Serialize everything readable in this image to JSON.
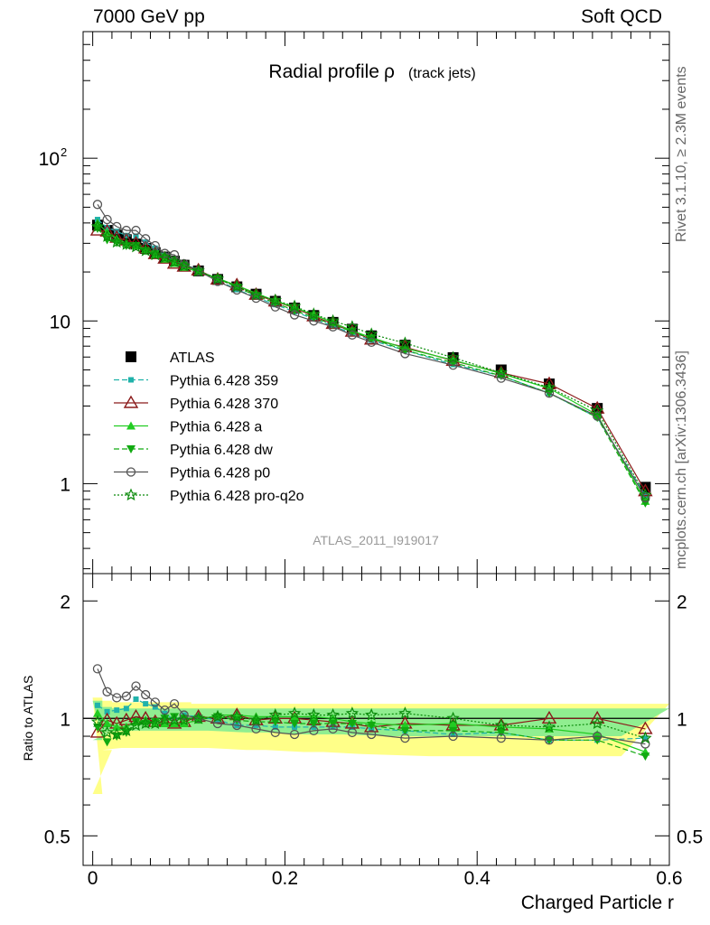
{
  "header": {
    "left": "7000 GeV pp",
    "right": "Soft QCD"
  },
  "side_labels": {
    "rivet": "Rivet 3.1.10, ≥ 2.3M events",
    "mcplots": "mcplots.cern.ch [arXiv:1306.3436]"
  },
  "colors": {
    "atlas": "#000000",
    "p359": "#20b2aa",
    "p370": "#8b1a1a",
    "pa": "#22cc22",
    "pdw": "#11aa11",
    "pp0": "#555555",
    "pq2o": "#0a8a0a",
    "band_inner": "#90ee90",
    "band_outer": "#ffff88"
  },
  "chart_data": [
    {
      "type": "line",
      "title": "Radial profile",
      "title_symbol": "ρ",
      "title_suffix": "(track jets)",
      "watermark": "ATLAS_2011_I919017",
      "xlabel": "Charged Particle r",
      "ylabel": "",
      "y_scale": "log",
      "xlim": [
        -0.01,
        0.6
      ],
      "ylim": [
        0.28,
        600
      ],
      "yticks": [
        {
          "value": 1,
          "label": "1"
        },
        {
          "value": 10,
          "label": "10"
        },
        {
          "value": 100,
          "label": "10",
          "sup": "2"
        }
      ],
      "legend_position": "left-lower",
      "x": [
        0.005,
        0.015,
        0.025,
        0.035,
        0.045,
        0.055,
        0.065,
        0.075,
        0.085,
        0.095,
        0.11,
        0.13,
        0.15,
        0.17,
        0.19,
        0.21,
        0.23,
        0.25,
        0.27,
        0.29,
        0.325,
        0.375,
        0.425,
        0.475,
        0.525,
        0.575
      ],
      "series": [
        {
          "name": "ATLAS",
          "key": "atlas",
          "marker": "square-filled",
          "dash": "none",
          "values": [
            38.8,
            36.0,
            33.7,
            31.6,
            29.7,
            27.9,
            26.3,
            24.7,
            23.3,
            22.0,
            20.3,
            18.0,
            16.2,
            14.6,
            13.2,
            12.0,
            10.8,
            9.8,
            8.9,
            8.1,
            7.1,
            5.95,
            5.0,
            4.1,
            2.9,
            0.95
          ]
        },
        {
          "name": "Pythia 6.428 359",
          "key": "p359",
          "marker": "square-small",
          "dash": "6,3",
          "values": [
            42,
            37.5,
            35.5,
            33.5,
            33.2,
            30.5,
            28.0,
            25.3,
            23.2,
            22.4,
            20.5,
            17.8,
            15.6,
            14.0,
            12.6,
            11.4,
            10.3,
            9.3,
            8.4,
            7.6,
            6.6,
            5.4,
            4.6,
            3.6,
            2.55,
            0.85
          ]
        },
        {
          "name": "Pythia 6.428 370",
          "key": "p370",
          "marker": "triangle-open",
          "dash": "none",
          "values": [
            36,
            35.5,
            32.5,
            31.3,
            30.0,
            28.0,
            25.8,
            24.2,
            22.5,
            21.6,
            20.5,
            18.0,
            16.6,
            14.5,
            13.2,
            12.0,
            10.7,
            9.6,
            8.6,
            7.7,
            6.9,
            5.7,
            4.8,
            4.1,
            2.9,
            0.9
          ]
        },
        {
          "name": "Pythia 6.428 a",
          "key": "pa",
          "marker": "triangle-filled",
          "dash": "none",
          "values": [
            40,
            35.0,
            32.0,
            30.0,
            29.0,
            27.5,
            25.6,
            24.0,
            22.6,
            21.4,
            20.0,
            18.3,
            16.5,
            14.8,
            13.3,
            12.1,
            10.9,
            9.8,
            8.7,
            7.9,
            6.8,
            5.75,
            4.75,
            3.85,
            2.65,
            0.78
          ]
        },
        {
          "name": "Pythia 6.428 dw",
          "key": "pdw",
          "marker": "triangle-down-filled",
          "dash": "6,3",
          "values": [
            37,
            31.5,
            30.3,
            29.0,
            29.0,
            27.0,
            25.8,
            24.7,
            23.6,
            22.0,
            20.3,
            18.2,
            16.1,
            14.3,
            12.9,
            11.6,
            10.5,
            9.5,
            8.6,
            7.8,
            6.6,
            5.55,
            4.6,
            3.6,
            2.55,
            0.76
          ]
        },
        {
          "name": "Pythia 6.428 p0",
          "key": "pp0",
          "marker": "circle-open",
          "dash": "none",
          "values": [
            52,
            42.0,
            38.0,
            36.0,
            36.0,
            32.0,
            29.0,
            26.0,
            25.5,
            22.5,
            20.3,
            17.5,
            15.5,
            13.8,
            12.2,
            10.9,
            10.0,
            9.2,
            8.2,
            7.4,
            6.3,
            5.35,
            4.45,
            3.6,
            2.6,
            0.82
          ]
        },
        {
          "name": "Pythia 6.428 pro-q2o",
          "key": "pq2o",
          "marker": "star-open",
          "dash": "2,2",
          "values": [
            38,
            33.0,
            30.5,
            29.5,
            28.5,
            27.0,
            25.5,
            24.5,
            23.0,
            21.8,
            20.3,
            18.1,
            16.3,
            14.5,
            13.4,
            12.3,
            11.0,
            10.0,
            9.2,
            8.3,
            7.3,
            5.95,
            4.8,
            3.9,
            2.8,
            0.85
          ]
        }
      ]
    },
    {
      "type": "line",
      "title": "",
      "xlabel": "Charged Particle r",
      "ylabel": "Ratio to ATLAS",
      "y_scale": "log",
      "xlim": [
        -0.01,
        0.6
      ],
      "ylim": [
        0.42,
        2.35
      ],
      "yticks": [
        {
          "value": 0.5,
          "label": "0.5"
        },
        {
          "value": 1,
          "label": "1"
        },
        {
          "value": 2,
          "label": "2"
        }
      ],
      "xticks": [
        {
          "value": 0,
          "label": "0"
        },
        {
          "value": 0.2,
          "label": "0.2"
        },
        {
          "value": 0.4,
          "label": "0.4"
        },
        {
          "value": 0.6,
          "label": "0.6"
        }
      ],
      "x": [
        0.005,
        0.015,
        0.025,
        0.035,
        0.045,
        0.055,
        0.065,
        0.075,
        0.085,
        0.095,
        0.11,
        0.13,
        0.15,
        0.17,
        0.19,
        0.21,
        0.23,
        0.25,
        0.27,
        0.29,
        0.325,
        0.375,
        0.425,
        0.475,
        0.525,
        0.575
      ],
      "band_inner": [
        [
          0.88,
          1.11
        ],
        [
          0.92,
          1.07
        ],
        [
          0.93,
          1.06
        ],
        [
          0.93,
          1.06
        ],
        [
          0.93,
          1.06
        ],
        [
          0.93,
          1.06
        ],
        [
          0.93,
          1.06
        ],
        [
          0.93,
          1.06
        ],
        [
          0.93,
          1.06
        ],
        [
          0.93,
          1.06
        ],
        [
          0.93,
          1.06
        ],
        [
          0.93,
          1.06
        ],
        [
          0.92,
          1.06
        ],
        [
          0.92,
          1.06
        ],
        [
          0.92,
          1.06
        ],
        [
          0.91,
          1.06
        ],
        [
          0.91,
          1.06
        ],
        [
          0.91,
          1.06
        ],
        [
          0.91,
          1.06
        ],
        [
          0.9,
          1.06
        ],
        [
          0.9,
          1.06
        ],
        [
          0.9,
          1.06
        ],
        [
          0.9,
          1.06
        ],
        [
          0.9,
          1.06
        ],
        [
          0.9,
          1.06
        ],
        [
          0.9,
          1.06
        ]
      ],
      "band_outer": [
        [
          0.64,
          1.13
        ],
        [
          0.83,
          1.11
        ],
        [
          0.84,
          1.1
        ],
        [
          0.84,
          1.1
        ],
        [
          0.84,
          1.1
        ],
        [
          0.84,
          1.1
        ],
        [
          0.84,
          1.1
        ],
        [
          0.84,
          1.1
        ],
        [
          0.84,
          1.1
        ],
        [
          0.84,
          1.1
        ],
        [
          0.84,
          1.09
        ],
        [
          0.84,
          1.09
        ],
        [
          0.83,
          1.09
        ],
        [
          0.83,
          1.09
        ],
        [
          0.83,
          1.09
        ],
        [
          0.82,
          1.09
        ],
        [
          0.82,
          1.09
        ],
        [
          0.82,
          1.09
        ],
        [
          0.81,
          1.09
        ],
        [
          0.81,
          1.09
        ],
        [
          0.8,
          1.09
        ],
        [
          0.8,
          1.09
        ],
        [
          0.8,
          1.09
        ],
        [
          0.8,
          1.09
        ],
        [
          0.8,
          1.09
        ],
        [
          0.8,
          1.09
        ]
      ],
      "series": [
        {
          "name": "Pythia 6.428 359",
          "key": "p359",
          "marker": "square-small",
          "dash": "6,3",
          "values": [
            1.08,
            1.04,
            1.05,
            1.06,
            1.12,
            1.09,
            1.07,
            1.03,
            0.99,
            1.02,
            1.01,
            0.99,
            0.96,
            0.96,
            0.95,
            0.95,
            0.95,
            0.95,
            0.95,
            0.94,
            0.93,
            0.91,
            0.92,
            0.88,
            0.88,
            0.89
          ]
        },
        {
          "name": "Pythia 6.428 370",
          "key": "p370",
          "marker": "triangle-open",
          "dash": "none",
          "values": [
            0.92,
            0.99,
            0.97,
            0.99,
            1.01,
            1.0,
            0.98,
            0.98,
            0.97,
            0.98,
            1.01,
            1.0,
            1.02,
            0.99,
            1.0,
            1.0,
            0.99,
            0.98,
            0.97,
            0.95,
            0.97,
            0.96,
            0.96,
            1.0,
            1.0,
            0.94
          ]
        },
        {
          "name": "Pythia 6.428 a",
          "key": "pa",
          "marker": "triangle-filled",
          "dash": "none",
          "values": [
            1.03,
            0.97,
            0.95,
            0.95,
            0.98,
            0.99,
            0.97,
            0.97,
            0.97,
            0.97,
            0.99,
            1.02,
            1.02,
            1.01,
            1.01,
            1.01,
            1.01,
            1.0,
            0.98,
            0.97,
            0.96,
            0.97,
            0.95,
            0.94,
            0.91,
            0.82
          ]
        },
        {
          "name": "Pythia 6.428 dw",
          "key": "pdw",
          "marker": "triangle-down-filled",
          "dash": "6,3",
          "values": [
            0.95,
            0.87,
            0.9,
            0.92,
            0.98,
            0.97,
            0.98,
            1.0,
            1.01,
            1.0,
            1.0,
            1.01,
            0.99,
            0.98,
            0.98,
            0.97,
            0.97,
            0.97,
            0.97,
            0.96,
            0.93,
            0.93,
            0.92,
            0.88,
            0.88,
            0.8
          ]
        },
        {
          "name": "Pythia 6.428 p0",
          "key": "pp0",
          "marker": "circle-open",
          "dash": "none",
          "values": [
            1.34,
            1.17,
            1.13,
            1.14,
            1.21,
            1.15,
            1.1,
            1.05,
            1.09,
            1.02,
            1.0,
            0.97,
            0.96,
            0.94,
            0.92,
            0.91,
            0.93,
            0.94,
            0.92,
            0.91,
            0.89,
            0.9,
            0.89,
            0.88,
            0.9,
            0.86
          ]
        },
        {
          "name": "Pythia 6.428 pro-q2o",
          "key": "pq2o",
          "marker": "star-open",
          "dash": "2,2",
          "values": [
            0.98,
            0.92,
            0.91,
            0.93,
            0.96,
            0.97,
            0.97,
            0.99,
            0.99,
            0.99,
            1.0,
            1.01,
            1.01,
            0.99,
            1.02,
            1.03,
            1.02,
            1.02,
            1.03,
            1.02,
            1.03,
            1.0,
            0.96,
            0.95,
            0.97,
            0.89
          ]
        }
      ]
    }
  ]
}
